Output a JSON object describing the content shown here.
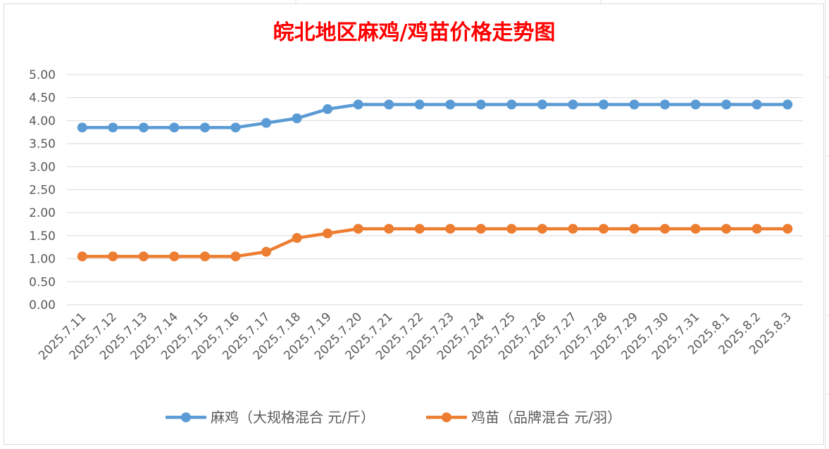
{
  "chart_data": {
    "type": "line",
    "title": "皖北地区麻鸡/鸡苗价格走势图",
    "title_color": "#ff0000",
    "categories": [
      "2025.7.11",
      "2025.7.12",
      "2025.7.13",
      "2025.7.14",
      "2025.7.15",
      "2025.7.16",
      "2025.7.17",
      "2025.7.18",
      "2025.7.19",
      "2025.7.20",
      "2025.7.21",
      "2025.7.22",
      "2025.7.23",
      "2025.7.24",
      "2025.7.25",
      "2025.7.26",
      "2025.7.27",
      "2025.7.28",
      "2025.7.29",
      "2025.7.30",
      "2025.7.31",
      "2025.8.1",
      "2025.8.2",
      "2025.8.3"
    ],
    "series": [
      {
        "name": "麻鸡（大规格混合 元/斤）",
        "color": "#5b9bd5",
        "values": [
          3.85,
          3.85,
          3.85,
          3.85,
          3.85,
          3.85,
          3.95,
          4.05,
          4.25,
          4.35,
          4.35,
          4.35,
          4.35,
          4.35,
          4.35,
          4.35,
          4.35,
          4.35,
          4.35,
          4.35,
          4.35,
          4.35,
          4.35,
          4.35
        ]
      },
      {
        "name": "鸡苗（品牌混合 元/羽）",
        "color": "#ed7d31",
        "values": [
          1.05,
          1.05,
          1.05,
          1.05,
          1.05,
          1.05,
          1.15,
          1.45,
          1.55,
          1.65,
          1.65,
          1.65,
          1.65,
          1.65,
          1.65,
          1.65,
          1.65,
          1.65,
          1.65,
          1.65,
          1.65,
          1.65,
          1.65,
          1.65
        ]
      }
    ],
    "y_ticks": [
      "0.00",
      "0.50",
      "1.00",
      "1.50",
      "2.00",
      "2.50",
      "3.00",
      "3.50",
      "4.00",
      "4.50",
      "5.00"
    ],
    "ylim": [
      0,
      5
    ],
    "xlabel": "",
    "ylabel": "",
    "grid": true,
    "legend_position": "bottom"
  }
}
